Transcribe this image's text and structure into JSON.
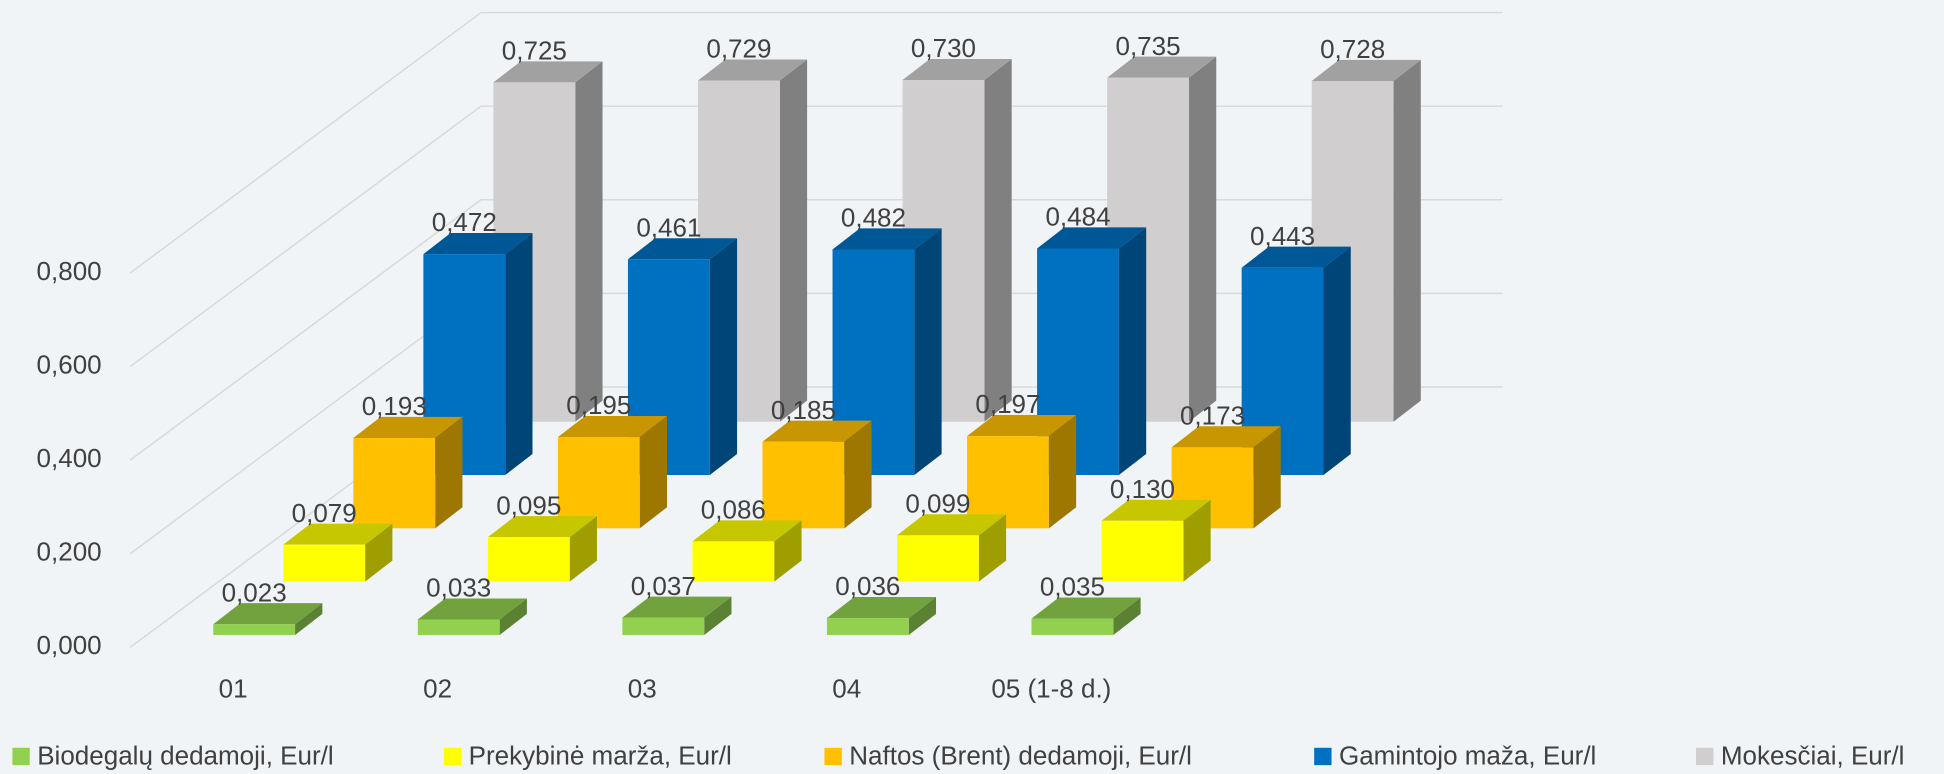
{
  "chart_data": {
    "type": "bar3d",
    "categories": [
      "01",
      "02",
      "03",
      "04",
      "05 (1-8 d.)"
    ],
    "series": [
      {
        "name": "Biodegalų dedamoji, Eur/l",
        "color": "#92d050",
        "values": [
          0.023,
          0.033,
          0.037,
          0.036,
          0.035
        ],
        "value_labels": [
          "0,023",
          "0,033",
          "0,037",
          "0,036",
          "0,035"
        ]
      },
      {
        "name": "Prekybinė marža, Eur/l",
        "color": "#ffff00",
        "values": [
          0.079,
          0.095,
          0.086,
          0.099,
          0.13
        ],
        "value_labels": [
          "0,079",
          "0,095",
          "0,086",
          "0,099",
          "0,130"
        ]
      },
      {
        "name": "Naftos (Brent) dedamoji, Eur/l",
        "color": "#ffc000",
        "values": [
          0.193,
          0.195,
          0.185,
          0.197,
          0.173
        ],
        "value_labels": [
          "0,193",
          "0,195",
          "0,185",
          "0,197",
          "0,173"
        ]
      },
      {
        "name": "Gamintojo maža, Eur/l",
        "color": "#0070c0",
        "values": [
          0.472,
          0.461,
          0.482,
          0.484,
          0.443
        ],
        "value_labels": [
          "0,472",
          "0,461",
          "0,482",
          "0,484",
          "0,443"
        ]
      },
      {
        "name": "Mokesčiai, Eur/l",
        "color": "#d0cece",
        "values": [
          0.725,
          0.729,
          0.73,
          0.735,
          0.728
        ],
        "value_labels": [
          "0,725",
          "0,729",
          "0,730",
          "0,735",
          "0,728"
        ]
      }
    ],
    "ylim": [
      0,
      0.8
    ],
    "yticks": [
      {
        "value": 0,
        "label": "0,000"
      },
      {
        "value": 0.2,
        "label": "0,200"
      },
      {
        "value": 0.4,
        "label": "0,400"
      },
      {
        "value": 0.6,
        "label": "0,600"
      },
      {
        "value": 0.8,
        "label": "0,800"
      }
    ],
    "grid": true,
    "legend": "bottom"
  }
}
